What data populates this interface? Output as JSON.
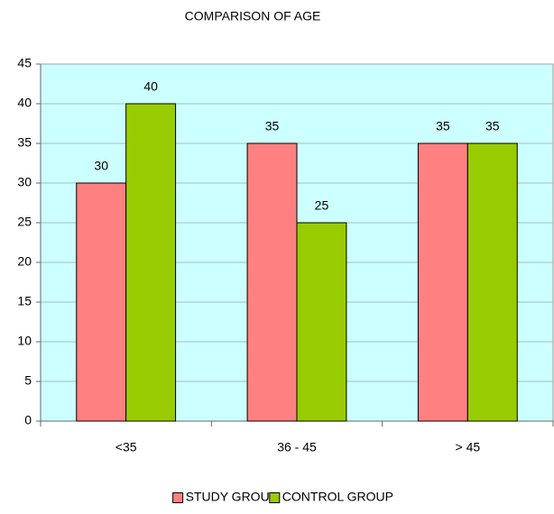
{
  "chart_data": {
    "type": "bar",
    "title": "COMPARISON OF AGE",
    "categories": [
      "<35",
      "36 - 45",
      "> 45"
    ],
    "series": [
      {
        "name": "STUDY GROUP",
        "color": "#ff8080",
        "values": [
          30,
          35,
          35
        ]
      },
      {
        "name": "CONTROL GROUP",
        "color": "#99cc00",
        "values": [
          40,
          25,
          35
        ]
      }
    ],
    "ylim": [
      0,
      45
    ],
    "yticks": [
      0,
      5,
      10,
      15,
      20,
      25,
      30,
      35,
      40,
      45
    ],
    "grid": true,
    "background": "#ccffff",
    "legend": "bottom"
  }
}
